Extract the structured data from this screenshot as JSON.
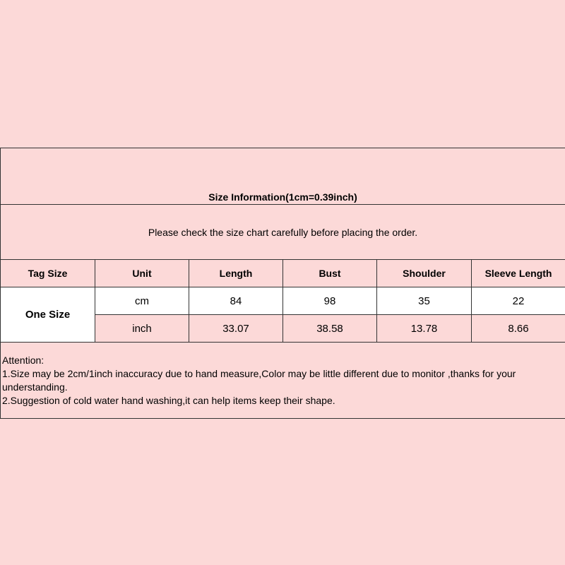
{
  "title": "Size Information(1cm=0.39inch)",
  "subtitle": "Please check the size chart carefully before placing the order.",
  "headers": [
    "Tag Size",
    "Unit",
    "Length",
    "Bust",
    "Shoulder",
    "Sleeve Length"
  ],
  "tag_size": "One Size",
  "rows": [
    {
      "unit": "cm",
      "values": [
        "84",
        "98",
        "35",
        "22"
      ]
    },
    {
      "unit": "inch",
      "values": [
        "33.07",
        "38.58",
        "13.78",
        "8.66"
      ]
    }
  ],
  "attention": {
    "heading": "Attention:",
    "lines": [
      "1.Size may be 2cm/1inch inaccuracy due to hand measure,Color may be little different due to monitor ,thanks for your understanding.",
      "2.Suggestion of cold water hand washing,it can help items keep their shape."
    ]
  },
  "colors": {
    "background": "#fcd9d8",
    "highlight_row": "#ffffff",
    "border": "#333333"
  }
}
